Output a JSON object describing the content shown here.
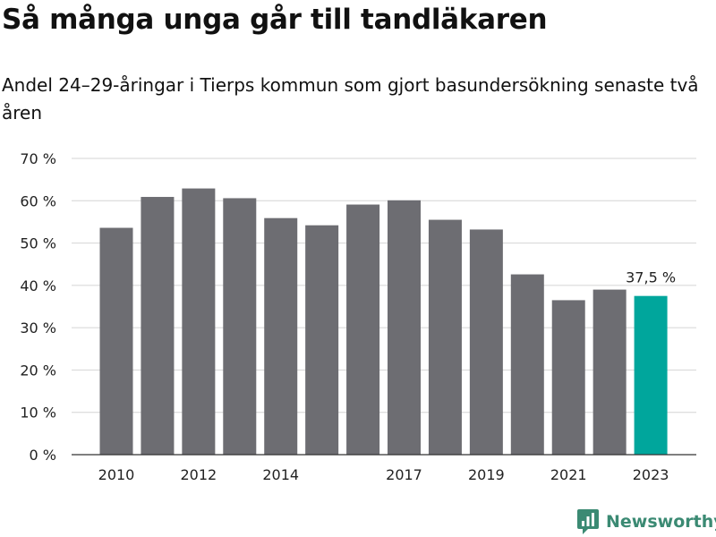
{
  "colors": {
    "bar": "#6d6d72",
    "highlight": "#00a69c",
    "grid": "#d4d4d4",
    "axis": "#333333",
    "brand": "#3b8a73"
  },
  "header": {
    "title": "Så många unga går till tandläkaren",
    "subtitle": "Andel 24–29-åringar i Tierps kommun som gjort basundersökning senaste två åren"
  },
  "brand": {
    "name": "Newsworthy",
    "icon": "newsworthy-logo-icon"
  },
  "chart_data": {
    "type": "bar",
    "title": "Så många unga går till tandläkaren",
    "subtitle": "Andel 24–29-åringar i Tierps kommun som gjort basundersökning senaste två åren",
    "categories": [
      "2010",
      "2011",
      "2012",
      "2013",
      "2014",
      "2015",
      "2016",
      "2017",
      "2018",
      "2019",
      "2020",
      "2021",
      "2022",
      "2023"
    ],
    "values": [
      53.6,
      60.9,
      62.9,
      60.6,
      55.9,
      54.2,
      59.1,
      60.1,
      55.5,
      53.2,
      42.6,
      36.5,
      39.0,
      37.5
    ],
    "highlight_index": 13,
    "data_labels": [
      {
        "index": 13,
        "text": "37,5 %"
      }
    ],
    "x_tick_labels": [
      {
        "index": 0,
        "text": "2010"
      },
      {
        "index": 2,
        "text": "2012"
      },
      {
        "index": 4,
        "text": "2014"
      },
      {
        "index": 7,
        "text": "2017"
      },
      {
        "index": 9,
        "text": "2019"
      },
      {
        "index": 11,
        "text": "2021"
      },
      {
        "index": 13,
        "text": "2023"
      }
    ],
    "y_ticks": [
      0,
      10,
      20,
      30,
      40,
      50,
      60,
      70
    ],
    "y_tick_labels": [
      "0 %",
      "10 %",
      "20 %",
      "30 %",
      "40 %",
      "50 %",
      "60 %",
      "70 %"
    ],
    "ylim": [
      0,
      70
    ],
    "xlabel": "",
    "ylabel": "",
    "grid": true,
    "legend": "none"
  }
}
